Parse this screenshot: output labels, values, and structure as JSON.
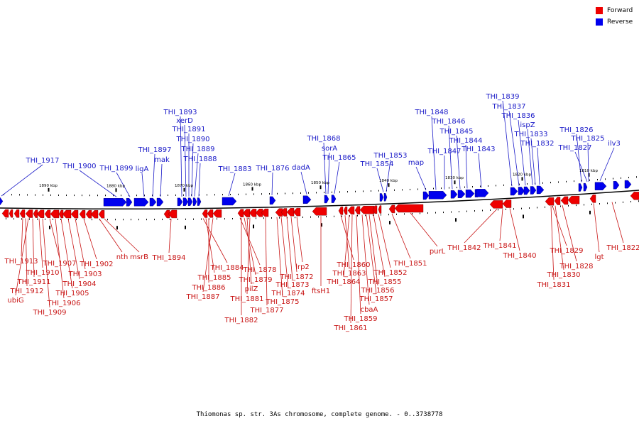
{
  "legend": {
    "forward": {
      "label": "Forward",
      "color": "#ee0000"
    },
    "reverse": {
      "label": "Reverse",
      "color": "#0000ee"
    }
  },
  "caption": "Thiomonas sp. str. 3As chromosome, complete genome. - 0..3738778",
  "scale_labels": [
    "1890 kbp",
    "1880 kbp",
    "1870 kbp",
    "1860 kbp",
    "1850 kbp",
    "1840 kbp",
    "1830 kbp",
    "1820 kbp",
    "1810 kbp"
  ],
  "reverse_genes": [
    "THI_1917",
    "THI_1900",
    "THI_1899",
    "ligA",
    "THI_1897",
    "mak",
    "THI_1893",
    "xerD",
    "THI_1891",
    "THI_1890",
    "THI_1889",
    "THI_1888",
    "THI_1883",
    "THI_1876",
    "dadA",
    "THI_1868",
    "sorA",
    "THI_1865",
    "THI_1854",
    "THI_1853",
    "map",
    "THI_1848",
    "THI_1847",
    "THI_1846",
    "THI_1845",
    "THI_1844",
    "THI_1843",
    "THI_1839",
    "THI_1837",
    "THI_1836",
    "ispZ",
    "THI_1833",
    "THI_1832",
    "THI_1826",
    "THI_1827",
    "THI_1825",
    "ilv3"
  ],
  "forward_genes": [
    "THI_1913",
    "THI_1912",
    "ubiG",
    "THI_1911",
    "THI_1910",
    "THI_1909",
    "THI_1907",
    "THI_1906",
    "THI_1905",
    "THI_1904",
    "THI_1903",
    "THI_1902",
    "nth",
    "msrB",
    "THI_1894",
    "THI_1884",
    "THI_1885",
    "THI_1886",
    "THI_1887",
    "THI_1878",
    "THI_1879",
    "pilZ",
    "THI_1881",
    "THI_1882",
    "THI_1877",
    "THI_1875",
    "THI_1874",
    "THI_1873",
    "THI_1872",
    "lrp2",
    "ftsH1",
    "THI_1860",
    "THI_1863",
    "THI_1864",
    "THI_1861",
    "THI_1859",
    "cbaA",
    "THI_1857",
    "THI_1856",
    "THI_1855",
    "THI_1852",
    "THI_1851",
    "purL",
    "THI_1842",
    "THI_1841",
    "THI_1840",
    "THI_1829",
    "THI_1828",
    "THI_1830",
    "THI_1831",
    "lgt",
    "THI_1822"
  ]
}
